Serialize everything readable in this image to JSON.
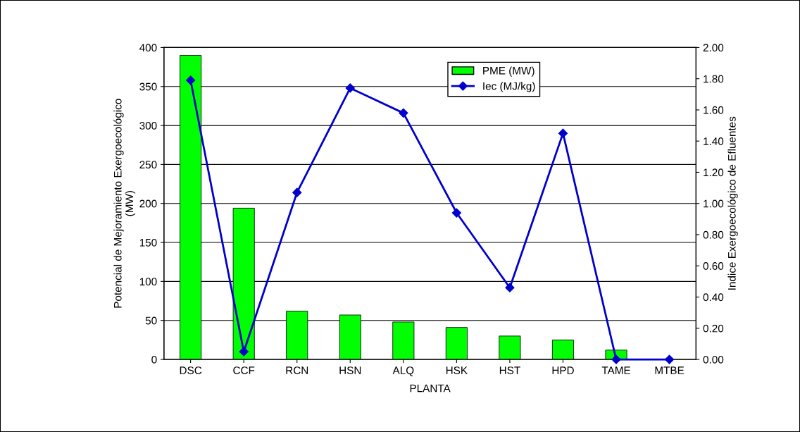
{
  "chart_data": {
    "type": "bar",
    "xlabel": "PLANTA",
    "ylabel": "Potencial de Mejoramiento Exergoecológico\n(MW)",
    "y2label": "Indice Exergoecológico de Efluentes",
    "categories": [
      "DSC",
      "CCF",
      "RCN",
      "HSN",
      "ALQ",
      "HSK",
      "HST",
      "HPD",
      "TAME",
      "MTBE"
    ],
    "series": [
      {
        "name": "PME (MW)",
        "color": "#00ff00",
        "values": [
          390,
          194,
          62,
          57,
          48,
          41,
          30,
          25,
          12,
          null
        ]
      },
      {
        "name": "Iec (MJ/kg)",
        "type": "line",
        "axis": "y2",
        "color": "#0000cc",
        "marker": "diamond",
        "values": [
          1.79,
          0.05,
          1.07,
          1.74,
          1.58,
          0.94,
          0.46,
          1.45,
          0.0,
          0.0
        ]
      }
    ],
    "ylim": [
      0,
      400
    ],
    "yticks": [
      0,
      50,
      100,
      150,
      200,
      250,
      300,
      350,
      400
    ],
    "y2lim": [
      0,
      2
    ],
    "y2ticks": [
      {
        "value": 0,
        "label": "0.00"
      },
      {
        "value": 0.2,
        "label": "0.20"
      },
      {
        "value": 0.4,
        "label": "0.40"
      },
      {
        "value": 0.6,
        "label": "0.60"
      },
      {
        "value": 0.8,
        "label": "0.80"
      },
      {
        "value": 1.0,
        "label": "1.00"
      },
      {
        "value": 1.2,
        "label": "1.20"
      },
      {
        "value": 1.4,
        "label": "1.40"
      },
      {
        "value": 1.6,
        "label": "1.60"
      },
      {
        "value": 1.8,
        "label": "1.80"
      },
      {
        "value": 2.0,
        "label": "2.00"
      }
    ],
    "grid": "y",
    "legend": "top"
  }
}
